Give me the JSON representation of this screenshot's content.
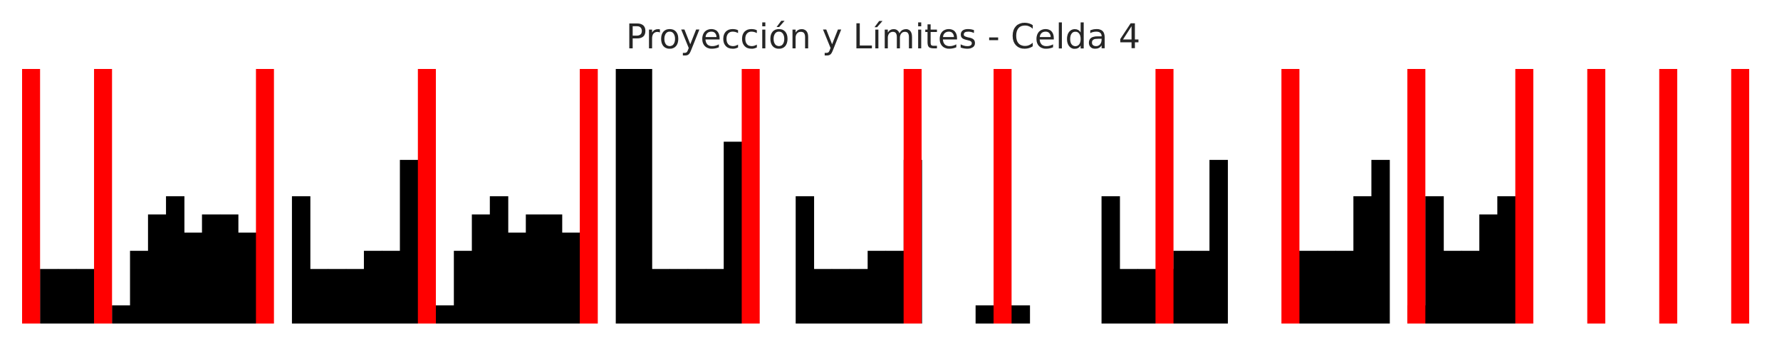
{
  "chart_data": {
    "type": "bar",
    "title": "Proyección y Límites - Celda 4",
    "xlabel": "",
    "ylabel": "",
    "axes_visible": false,
    "grid": false,
    "legend": "none",
    "xlim": [
      0,
      96
    ],
    "ylim": [
      0,
      14
    ],
    "bar_color": "#000000",
    "limit_color": "#ff0000",
    "x": [
      0,
      1,
      2,
      3,
      4,
      5,
      6,
      7,
      8,
      9,
      10,
      11,
      12,
      13,
      14,
      15,
      16,
      17,
      18,
      19,
      20,
      21,
      22,
      23,
      24,
      25,
      26,
      27,
      28,
      29,
      30,
      31,
      32,
      33,
      34,
      35,
      36,
      37,
      38,
      39,
      40,
      41,
      42,
      43,
      44,
      45,
      46,
      47,
      48,
      49,
      50,
      51,
      52,
      53,
      54,
      55,
      56,
      57,
      58,
      59,
      60,
      61,
      62,
      63,
      64,
      65,
      66,
      67,
      68,
      69,
      70,
      71,
      72,
      73,
      74,
      75,
      76,
      77,
      78,
      79,
      80,
      81,
      82,
      83,
      84,
      85,
      86,
      87,
      88,
      89,
      90,
      91,
      92,
      93,
      94,
      95
    ],
    "values": [
      0,
      3,
      3,
      3,
      0,
      1,
      4,
      6,
      7,
      5,
      6,
      6,
      5,
      0,
      0,
      7,
      3,
      3,
      3,
      4,
      4,
      9,
      0,
      1,
      4,
      6,
      7,
      5,
      6,
      6,
      5,
      0,
      0,
      14,
      14,
      3,
      3,
      3,
      3,
      10,
      0,
      0,
      0,
      7,
      3,
      3,
      3,
      4,
      4,
      9,
      0,
      0,
      0,
      1,
      1,
      1,
      0,
      0,
      0,
      0,
      7,
      3,
      3,
      3,
      4,
      4,
      9,
      0,
      0,
      0,
      0,
      4,
      4,
      4,
      7,
      9,
      0,
      1,
      7,
      4,
      4,
      6,
      7,
      0,
      0,
      0,
      0,
      0,
      0,
      0,
      0,
      0,
      0,
      0,
      0,
      0
    ],
    "limits": [
      0,
      4,
      13,
      22,
      31,
      40,
      49,
      54,
      63,
      70,
      77,
      83,
      87,
      91,
      95
    ]
  }
}
